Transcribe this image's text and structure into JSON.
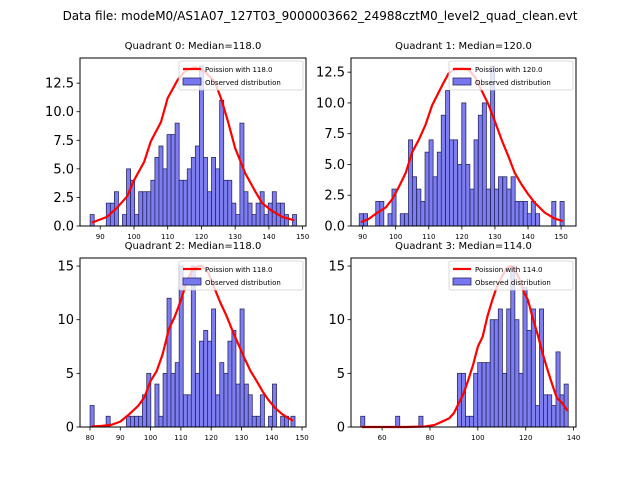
{
  "suptitle": "Data file: modeM0/AS1A07_127T03_9000003662_24988cztM0_level2_quad_clean.evt",
  "colors": {
    "bar_fill": "#7777f0",
    "bar_edge": "#2a2a66",
    "poisson_line": "#ff0000"
  },
  "legend_labels": {
    "observed": "Observed distribution"
  },
  "chart_data": [
    {
      "type": "bar",
      "title": "Quadrant 0: Median=118.0",
      "median": 118.0,
      "poisson_label": "Poission with 118.0",
      "xlim": [
        84.0,
        151.0
      ],
      "ylim": [
        0,
        14.7
      ],
      "xticks": [
        90,
        100,
        110,
        120,
        130,
        140,
        150
      ],
      "yticks": [
        0.0,
        2.5,
        5.0,
        7.5,
        10.0,
        12.5
      ],
      "ytick_labels": [
        "0.0",
        "2.5",
        "5.0",
        "7.5",
        "10.0",
        "12.5"
      ],
      "bin_width": 1.2,
      "bars": [
        [
          87.6,
          1
        ],
        [
          92.4,
          2
        ],
        [
          93.6,
          2
        ],
        [
          94.8,
          3
        ],
        [
          97.2,
          1
        ],
        [
          98.4,
          5
        ],
        [
          99.6,
          4
        ],
        [
          100.8,
          1
        ],
        [
          102.0,
          3
        ],
        [
          103.2,
          3
        ],
        [
          104.4,
          3
        ],
        [
          105.6,
          4
        ],
        [
          106.8,
          6
        ],
        [
          108.0,
          7
        ],
        [
          109.2,
          5
        ],
        [
          110.4,
          8
        ],
        [
          111.6,
          8
        ],
        [
          112.8,
          9
        ],
        [
          114.0,
          4
        ],
        [
          115.2,
          4
        ],
        [
          116.4,
          5
        ],
        [
          117.6,
          6
        ],
        [
          118.8,
          7
        ],
        [
          120.0,
          14
        ],
        [
          121.2,
          6
        ],
        [
          122.4,
          3
        ],
        [
          123.6,
          6
        ],
        [
          124.8,
          5
        ],
        [
          126.0,
          11
        ],
        [
          127.2,
          4
        ],
        [
          128.4,
          4
        ],
        [
          129.6,
          2
        ],
        [
          130.8,
          1
        ],
        [
          132.0,
          9
        ],
        [
          133.2,
          3
        ],
        [
          134.4,
          2
        ],
        [
          135.6,
          1
        ],
        [
          136.8,
          2
        ],
        [
          138.0,
          3
        ],
        [
          139.2,
          1
        ],
        [
          140.4,
          2
        ],
        [
          141.6,
          3
        ],
        [
          142.8,
          2
        ],
        [
          144.0,
          2
        ],
        [
          145.2,
          1
        ],
        [
          147.6,
          1
        ]
      ],
      "poisson_x": [
        87.5,
        92,
        95,
        98,
        100,
        103,
        105,
        108,
        110,
        113,
        115,
        117,
        118,
        121,
        124,
        126,
        128,
        130,
        133,
        136,
        138,
        141,
        144,
        147.5
      ],
      "poisson_y": [
        0.3,
        0.8,
        1.6,
        2.6,
        4.0,
        5.6,
        7.4,
        9.1,
        11.2,
        12.8,
        13.5,
        13.8,
        13.9,
        13.5,
        12.6,
        11.0,
        9.0,
        6.8,
        4.6,
        3.0,
        2.0,
        1.3,
        0.8,
        0.5
      ]
    },
    {
      "type": "bar",
      "title": "Quadrant 1: Median=120.0",
      "median": 120.0,
      "poisson_label": "Poission with 120.0",
      "xlim": [
        86.5,
        154.5
      ],
      "ylim": [
        0,
        13.65
      ],
      "xticks": [
        90,
        100,
        110,
        120,
        130,
        140,
        150
      ],
      "yticks": [
        0.0,
        2.5,
        5.0,
        7.5,
        10.0,
        12.5
      ],
      "ytick_labels": [
        "0.0",
        "2.5",
        "5.0",
        "7.5",
        "10.0",
        "12.5"
      ],
      "bin_width": 1.24,
      "bars": [
        [
          89.6,
          1
        ],
        [
          90.9,
          1
        ],
        [
          94.6,
          2
        ],
        [
          95.8,
          2
        ],
        [
          98.3,
          1
        ],
        [
          99.5,
          3
        ],
        [
          102.0,
          1
        ],
        [
          103.3,
          1
        ],
        [
          104.5,
          7
        ],
        [
          105.7,
          4
        ],
        [
          107.0,
          3
        ],
        [
          108.2,
          2
        ],
        [
          109.5,
          6
        ],
        [
          110.7,
          7
        ],
        [
          111.9,
          4
        ],
        [
          113.2,
          6
        ],
        [
          114.4,
          9
        ],
        [
          115.7,
          11
        ],
        [
          116.9,
          7
        ],
        [
          118.1,
          7
        ],
        [
          119.4,
          5
        ],
        [
          120.6,
          10
        ],
        [
          121.8,
          5
        ],
        [
          123.1,
          3
        ],
        [
          124.3,
          7
        ],
        [
          125.6,
          9
        ],
        [
          126.8,
          10
        ],
        [
          128.0,
          3
        ],
        [
          129.3,
          13
        ],
        [
          130.5,
          3
        ],
        [
          131.7,
          4
        ],
        [
          133.0,
          4
        ],
        [
          134.2,
          3
        ],
        [
          135.5,
          4
        ],
        [
          136.7,
          2
        ],
        [
          137.9,
          2
        ],
        [
          139.2,
          2
        ],
        [
          140.4,
          1
        ],
        [
          141.6,
          2
        ],
        [
          142.9,
          1
        ],
        [
          147.8,
          2
        ],
        [
          150.3,
          2
        ]
      ],
      "poisson_x": [
        89.5,
        92,
        94,
        97,
        99,
        101,
        103,
        105,
        107,
        109,
        111,
        114,
        116,
        118,
        120,
        122,
        124,
        126,
        128,
        130,
        132,
        134,
        136,
        138,
        140,
        142,
        145,
        148,
        150.5
      ],
      "poisson_y": [
        0.3,
        0.6,
        1.0,
        1.5,
        2.2,
        3.2,
        4.3,
        6.0,
        7.0,
        8.2,
        9.8,
        11.4,
        12.4,
        12.8,
        12.8,
        12.7,
        12.1,
        11.0,
        9.9,
        8.5,
        7.0,
        5.7,
        4.3,
        3.4,
        2.6,
        1.9,
        1.1,
        0.6,
        0.4
      ]
    },
    {
      "type": "bar",
      "title": "Quadrant 2: Median=118.0",
      "median": 118.0,
      "poisson_label": "Poission with 118.0",
      "xlim": [
        76.7,
        151.3
      ],
      "ylim": [
        0,
        15.75
      ],
      "xticks": [
        80,
        90,
        100,
        110,
        120,
        130,
        140,
        150
      ],
      "yticks": [
        0,
        5,
        10,
        15
      ],
      "ytick_labels": [
        "0",
        "5",
        "10",
        "15"
      ],
      "bin_width": 1.34,
      "bars": [
        [
          80.7,
          2
        ],
        [
          86.0,
          1
        ],
        [
          92.7,
          1
        ],
        [
          94.0,
          1
        ],
        [
          95.4,
          1
        ],
        [
          96.7,
          1
        ],
        [
          98.0,
          3
        ],
        [
          99.4,
          5
        ],
        [
          102.1,
          4
        ],
        [
          103.4,
          1
        ],
        [
          104.8,
          5
        ],
        [
          106.1,
          12
        ],
        [
          107.4,
          5
        ],
        [
          108.8,
          6
        ],
        [
          110.1,
          15
        ],
        [
          111.5,
          3
        ],
        [
          112.8,
          3
        ],
        [
          114.1,
          15
        ],
        [
          115.5,
          5
        ],
        [
          116.8,
          8
        ],
        [
          118.2,
          9
        ],
        [
          119.5,
          8
        ],
        [
          120.8,
          11
        ],
        [
          122.2,
          3
        ],
        [
          123.5,
          6
        ],
        [
          124.9,
          5
        ],
        [
          126.2,
          8
        ],
        [
          127.5,
          9
        ],
        [
          128.9,
          4
        ],
        [
          130.2,
          11
        ],
        [
          131.6,
          4
        ],
        [
          132.9,
          3
        ],
        [
          134.2,
          1
        ],
        [
          135.6,
          1
        ],
        [
          136.9,
          3
        ],
        [
          139.6,
          1
        ],
        [
          140.9,
          4
        ],
        [
          143.6,
          1
        ],
        [
          144.9,
          1
        ],
        [
          147.0,
          1
        ]
      ],
      "poisson_x": [
        80.5,
        84,
        87,
        90,
        93,
        96,
        98,
        100,
        102,
        104,
        106,
        108,
        110,
        112,
        114,
        116,
        117,
        119,
        121,
        123,
        125,
        127,
        129,
        131,
        133,
        135,
        137,
        139,
        141,
        143,
        145,
        147
      ],
      "poisson_y": [
        0.05,
        0.1,
        0.2,
        0.5,
        1.2,
        2.0,
        2.8,
        4.3,
        5.2,
        6.8,
        9.1,
        10.3,
        11.8,
        13.6,
        14.8,
        15.0,
        15.0,
        14.4,
        13.0,
        11.6,
        10.4,
        9.0,
        7.7,
        6.4,
        5.2,
        4.3,
        3.3,
        2.5,
        1.8,
        1.3,
        0.9,
        0.6
      ]
    },
    {
      "type": "bar",
      "title": "Quadrant 3: Median=114.0",
      "median": 114.0,
      "poisson_label": "Poission with 114.0",
      "xlim": [
        47.0,
        141.0
      ],
      "ylim": [
        0,
        15.75
      ],
      "xticks": [
        60,
        80,
        100,
        120,
        140
      ],
      "yticks": [
        0,
        5,
        10,
        15
      ],
      "ytick_labels": [
        "0",
        "5",
        "10",
        "15"
      ],
      "bin_width": 1.72,
      "bars": [
        [
          51.9,
          1
        ],
        [
          66.5,
          1
        ],
        [
          76.2,
          1
        ],
        [
          92.3,
          5
        ],
        [
          94.0,
          5
        ],
        [
          95.7,
          1
        ],
        [
          97.4,
          1
        ],
        [
          99.1,
          5
        ],
        [
          100.8,
          6
        ],
        [
          102.6,
          6
        ],
        [
          104.3,
          6
        ],
        [
          106.0,
          10
        ],
        [
          107.7,
          10
        ],
        [
          109.4,
          11
        ],
        [
          111.1,
          5
        ],
        [
          112.9,
          11
        ],
        [
          114.6,
          15
        ],
        [
          116.3,
          10
        ],
        [
          118.0,
          5
        ],
        [
          119.7,
          13
        ],
        [
          121.4,
          9
        ],
        [
          123.2,
          11
        ],
        [
          124.9,
          2
        ],
        [
          126.6,
          11
        ],
        [
          128.3,
          3
        ],
        [
          130.0,
          3
        ],
        [
          131.7,
          2
        ],
        [
          133.5,
          7
        ],
        [
          135.2,
          3
        ],
        [
          136.9,
          4
        ]
      ],
      "poisson_x": [
        51.5,
        60,
        70,
        78,
        82,
        85,
        88,
        90,
        92,
        94,
        96,
        98,
        100,
        102,
        104,
        106,
        108,
        110,
        112,
        113.5,
        115,
        117,
        119,
        121,
        123,
        125,
        127,
        129,
        131,
        133,
        135,
        137.5
      ],
      "poisson_y": [
        0.0,
        0.0,
        0.0,
        0.05,
        0.2,
        0.5,
        0.8,
        1.3,
        2.2,
        3.1,
        4.4,
        5.8,
        7.5,
        8.4,
        10.3,
        11.8,
        13.1,
        14.0,
        14.8,
        15.0,
        14.8,
        14.0,
        12.7,
        11.8,
        10.1,
        8.6,
        6.9,
        5.4,
        4.0,
        2.7,
        2.3,
        1.5
      ]
    }
  ]
}
